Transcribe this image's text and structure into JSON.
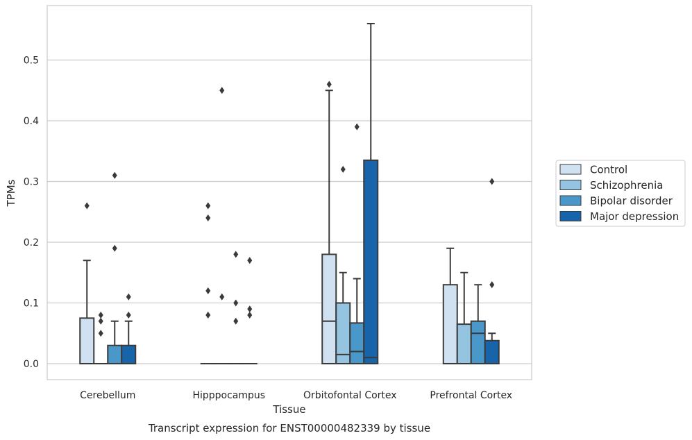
{
  "chart_data": {
    "type": "box",
    "xlabel": "Tissue",
    "ylabel": "TPMs",
    "caption": "Transcript expression for ENST00000482339 by tissue",
    "ylim": [
      -0.028,
      0.588
    ],
    "yticks": [
      0.0,
      0.1,
      0.2,
      0.3,
      0.4,
      0.5
    ],
    "ytick_labels": [
      "0.0",
      "0.1",
      "0.2",
      "0.3",
      "0.4",
      "0.5"
    ],
    "grid": "y",
    "legend_position": "right",
    "categories": [
      "Cerebellum",
      "Hipppocampus",
      "Orbitofontal Cortex",
      "Prefrontal Cortex"
    ],
    "series": [
      {
        "name": "Control",
        "color": "#d0e1f1",
        "boxes": [
          {
            "q1": 0.0,
            "median": 0.0,
            "q3": 0.075,
            "whislo": 0.0,
            "whishi": 0.17,
            "fliers": [
              0.26
            ]
          },
          {
            "q1": 0.0,
            "median": 0.0,
            "q3": 0.0,
            "whislo": 0.0,
            "whishi": 0.0,
            "fliers": [
              0.26,
              0.24,
              0.12,
              0.08
            ]
          },
          {
            "q1": 0.0,
            "median": 0.07,
            "q3": 0.18,
            "whislo": 0.0,
            "whishi": 0.45,
            "fliers": [
              0.46
            ]
          },
          {
            "q1": 0.0,
            "median": 0.0,
            "q3": 0.13,
            "whislo": 0.0,
            "whishi": 0.19,
            "fliers": []
          }
        ]
      },
      {
        "name": "Schizophrenia",
        "color": "#94c4df",
        "boxes": [
          {
            "q1": 0.0,
            "median": 0.0,
            "q3": 0.0,
            "whislo": 0.0,
            "whishi": 0.0,
            "fliers": [
              0.08,
              0.07,
              0.05
            ]
          },
          {
            "q1": 0.0,
            "median": 0.0,
            "q3": 0.0,
            "whislo": 0.0,
            "whishi": 0.0,
            "fliers": [
              0.45,
              0.11
            ]
          },
          {
            "q1": 0.0,
            "median": 0.015,
            "q3": 0.1,
            "whislo": 0.0,
            "whishi": 0.15,
            "fliers": [
              0.32
            ]
          },
          {
            "q1": 0.0,
            "median": 0.0,
            "q3": 0.065,
            "whislo": 0.0,
            "whishi": 0.15,
            "fliers": []
          }
        ]
      },
      {
        "name": "Bipolar disorder",
        "color": "#4a97c9",
        "boxes": [
          {
            "q1": 0.0,
            "median": 0.0,
            "q3": 0.03,
            "whislo": 0.0,
            "whishi": 0.07,
            "fliers": [
              0.31,
              0.19
            ]
          },
          {
            "q1": 0.0,
            "median": 0.0,
            "q3": 0.0,
            "whislo": 0.0,
            "whishi": 0.0,
            "fliers": [
              0.18,
              0.1,
              0.07
            ]
          },
          {
            "q1": 0.0,
            "median": 0.02,
            "q3": 0.067,
            "whislo": 0.0,
            "whishi": 0.14,
            "fliers": [
              0.39
            ]
          },
          {
            "q1": 0.0,
            "median": 0.05,
            "q3": 0.07,
            "whislo": 0.0,
            "whishi": 0.13,
            "fliers": []
          }
        ]
      },
      {
        "name": "Major depression",
        "color": "#1764ab",
        "boxes": [
          {
            "q1": 0.0,
            "median": 0.0,
            "q3": 0.03,
            "whislo": 0.0,
            "whishi": 0.07,
            "fliers": [
              0.11,
              0.08
            ]
          },
          {
            "q1": 0.0,
            "median": 0.0,
            "q3": 0.0,
            "whislo": 0.0,
            "whishi": 0.0,
            "fliers": [
              0.17,
              0.09,
              0.08
            ]
          },
          {
            "q1": 0.0,
            "median": 0.01,
            "q3": 0.335,
            "whislo": 0.0,
            "whishi": 0.56,
            "fliers": []
          },
          {
            "q1": 0.0,
            "median": 0.0,
            "q3": 0.038,
            "whislo": 0.0,
            "whishi": 0.05,
            "fliers": [
              0.3,
              0.13
            ]
          }
        ]
      }
    ]
  }
}
